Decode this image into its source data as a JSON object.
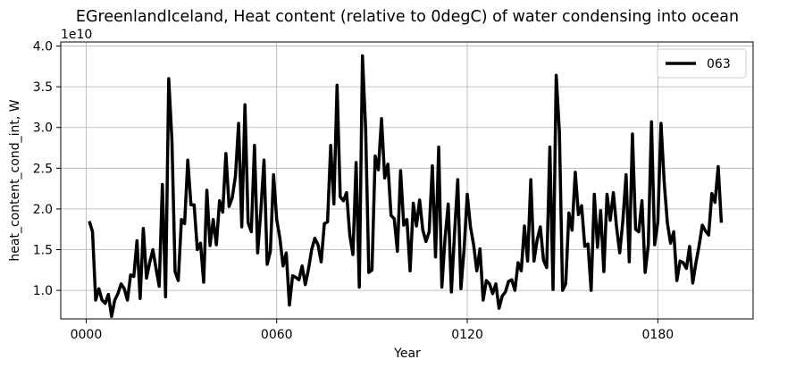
{
  "chart_data": {
    "type": "line",
    "title": "EGreenlandIceland, Heat content (relative to 0degC) of water condensing into ocean",
    "xlabel": "Year",
    "ylabel": "heat_content_cond_int, W",
    "y_offset_label": "1e10",
    "xlim": [
      -8,
      210
    ],
    "ylim": [
      0.65,
      4.05
    ],
    "x_ticks": [
      0,
      60,
      120,
      180
    ],
    "x_tick_labels": [
      "0000",
      "0060",
      "0120",
      "0180"
    ],
    "y_ticks": [
      1.0,
      1.5,
      2.0,
      2.5,
      3.0,
      3.5,
      4.0
    ],
    "y_tick_labels": [
      "1.0",
      "1.5",
      "2.0",
      "2.5",
      "3.0",
      "3.5",
      "4.0"
    ],
    "grid": true,
    "legend_position": "top-right",
    "series": [
      {
        "name": "063",
        "color": "#000000",
        "x_start": 1,
        "x_step": 1,
        "values": [
          1.85,
          1.72,
          0.88,
          1.02,
          0.88,
          0.84,
          0.95,
          0.68,
          0.88,
          0.96,
          1.08,
          1.02,
          0.88,
          1.19,
          1.17,
          1.61,
          0.9,
          1.76,
          1.15,
          1.34,
          1.5,
          1.27,
          1.05,
          2.3,
          0.92,
          3.6,
          2.85,
          1.23,
          1.12,
          1.87,
          1.82,
          2.6,
          2.05,
          2.05,
          1.5,
          1.58,
          1.1,
          2.23,
          1.55,
          1.87,
          1.56,
          2.1,
          1.96,
          2.68,
          2.03,
          2.14,
          2.4,
          3.05,
          1.78,
          3.28,
          1.83,
          1.72,
          2.78,
          1.46,
          1.98,
          2.6,
          1.32,
          1.48,
          2.42,
          1.87,
          1.64,
          1.3,
          1.46,
          0.82,
          1.18,
          1.16,
          1.13,
          1.3,
          1.07,
          1.26,
          1.5,
          1.64,
          1.56,
          1.35,
          1.82,
          1.84,
          2.78,
          2.06,
          3.52,
          2.15,
          2.1,
          2.2,
          1.68,
          1.44,
          2.57,
          1.04,
          3.88,
          2.98,
          1.22,
          1.25,
          2.65,
          2.48,
          3.11,
          2.38,
          2.55,
          1.92,
          1.88,
          1.48,
          2.47,
          1.8,
          1.87,
          1.24,
          2.07,
          1.79,
          2.11,
          1.74,
          1.6,
          1.72,
          2.53,
          1.41,
          2.76,
          1.04,
          1.64,
          2.06,
          0.98,
          1.71,
          2.36,
          1.02,
          1.51,
          2.18,
          1.78,
          1.56,
          1.24,
          1.51,
          0.88,
          1.12,
          1.08,
          0.96,
          1.08,
          0.78,
          0.93,
          0.98,
          1.11,
          1.13,
          1.0,
          1.34,
          1.24,
          1.79,
          1.36,
          2.36,
          1.36,
          1.62,
          1.78,
          1.37,
          1.28,
          2.76,
          1.01,
          3.64,
          2.95,
          1.0,
          1.08,
          1.95,
          1.74,
          2.45,
          1.93,
          2.04,
          1.54,
          1.57,
          1.0,
          2.18,
          1.53,
          1.98,
          1.23,
          2.18,
          1.86,
          2.2,
          1.78,
          1.46,
          1.86,
          2.42,
          1.35,
          2.92,
          1.75,
          1.72,
          2.1,
          1.22,
          1.56,
          3.07,
          1.56,
          1.84,
          3.05,
          2.33,
          1.83,
          1.58,
          1.72,
          1.12,
          1.36,
          1.34,
          1.27,
          1.54,
          1.09,
          1.34,
          1.55,
          1.8,
          1.73,
          1.68,
          2.19,
          2.08,
          2.52,
          1.83
        ]
      }
    ]
  }
}
